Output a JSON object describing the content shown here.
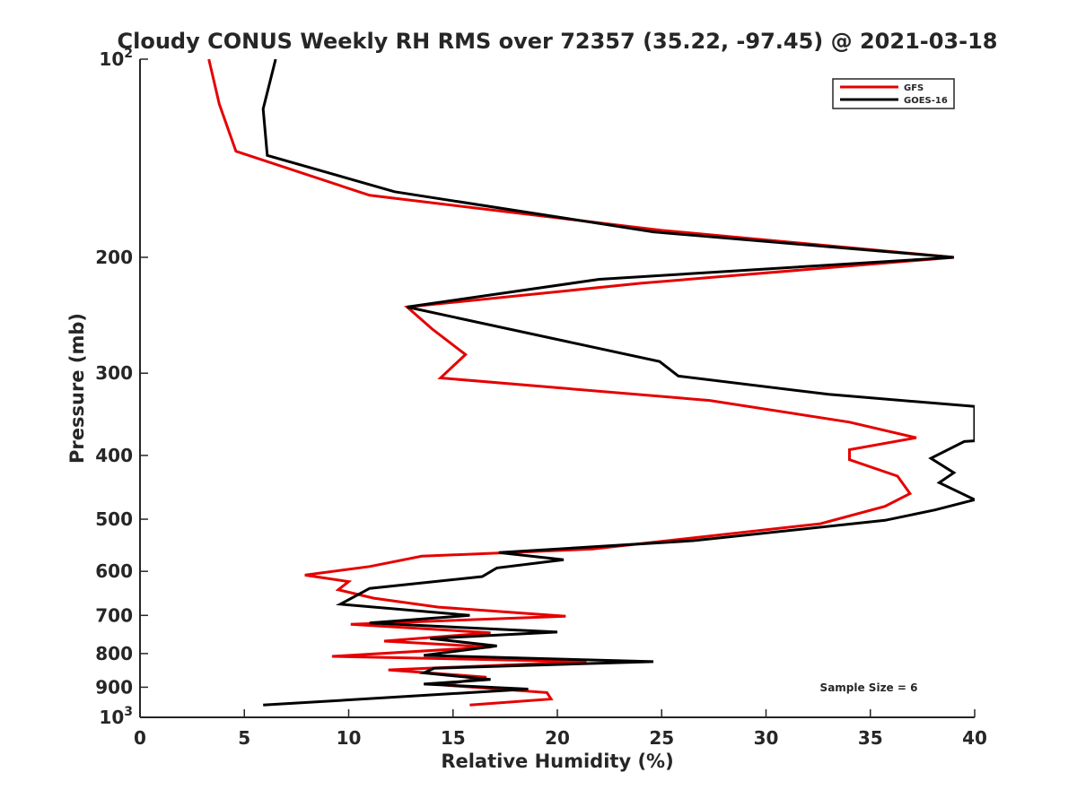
{
  "chart_data": {
    "type": "line",
    "title": "Cloudy CONUS Weekly RH RMS over 72357 (35.22, -97.45) @ 2021-03-18",
    "xlabel": "Relative Humidity (%)",
    "ylabel": "Pressure (mb)",
    "xlim": [
      0,
      40
    ],
    "ylim": [
      100,
      1000
    ],
    "y_scale": "log",
    "y_reversed": true,
    "x_ticks": [
      0,
      5,
      10,
      15,
      20,
      25,
      30,
      35,
      40
    ],
    "y_ticks": [
      {
        "value": 100,
        "base": "10",
        "exp": "2"
      },
      {
        "value": 200,
        "label": "200"
      },
      {
        "value": 300,
        "label": "300"
      },
      {
        "value": 400,
        "label": "400"
      },
      {
        "value": 500,
        "label": "500"
      },
      {
        "value": 600,
        "label": "600"
      },
      {
        "value": 700,
        "label": "700"
      },
      {
        "value": 800,
        "label": "800"
      },
      {
        "value": 900,
        "label": "900"
      },
      {
        "value": 1000,
        "base": "10",
        "exp": "3"
      }
    ],
    "grid": false,
    "legend_position": "top-right",
    "series": [
      {
        "name": "GFS",
        "color": "#e60000",
        "points": [
          [
            3.3,
            100
          ],
          [
            3.8,
            117
          ],
          [
            4.6,
            138
          ],
          [
            11.0,
            161
          ],
          [
            25.0,
            182
          ],
          [
            39.0,
            200
          ],
          [
            24.0,
            219
          ],
          [
            12.8,
            238
          ],
          [
            14.0,
            257
          ],
          [
            15.6,
            281
          ],
          [
            14.4,
            305
          ],
          [
            27.3,
            330
          ],
          [
            34.0,
            356
          ],
          [
            37.2,
            376
          ],
          [
            34.0,
            392
          ],
          [
            34.0,
            406
          ],
          [
            36.3,
            430
          ],
          [
            36.9,
            457
          ],
          [
            35.7,
            478
          ],
          [
            32.6,
            508
          ],
          [
            21.7,
            555
          ],
          [
            13.5,
            569
          ],
          [
            11.0,
            590
          ],
          [
            7.9,
            608
          ],
          [
            10.0,
            622
          ],
          [
            9.5,
            640
          ],
          [
            11.2,
            659
          ],
          [
            14.3,
            680
          ],
          [
            20.4,
            702
          ],
          [
            10.1,
            722
          ],
          [
            16.8,
            744
          ],
          [
            11.7,
            766
          ],
          [
            16.8,
            782
          ],
          [
            9.2,
            808
          ],
          [
            21.4,
            823
          ],
          [
            11.9,
            847
          ],
          [
            16.6,
            869
          ],
          [
            14.5,
            893
          ],
          [
            19.5,
            917
          ],
          [
            19.7,
            938
          ],
          [
            15.8,
            958
          ]
        ]
      },
      {
        "name": "GOES-16",
        "color": "#000000",
        "points": [
          [
            6.5,
            100
          ],
          [
            5.9,
            119
          ],
          [
            6.1,
            140
          ],
          [
            12.2,
            159
          ],
          [
            24.6,
            183
          ],
          [
            39.0,
            200
          ],
          [
            22.0,
            216
          ],
          [
            12.8,
            238
          ],
          [
            24.9,
            288
          ],
          [
            25.8,
            303
          ],
          [
            33.0,
            323
          ],
          [
            40.0,
            337
          ],
          [
            40.0,
            380
          ],
          [
            39.5,
            381
          ],
          [
            37.9,
            404
          ],
          [
            39.0,
            425
          ],
          [
            38.3,
            440
          ],
          [
            40.0,
            467
          ],
          [
            38.1,
            484
          ],
          [
            35.7,
            502
          ],
          [
            26.5,
            539
          ],
          [
            17.2,
            562
          ],
          [
            20.3,
            576
          ],
          [
            17.1,
            593
          ],
          [
            16.4,
            611
          ],
          [
            11.0,
            637
          ],
          [
            10.3,
            655
          ],
          [
            9.6,
            673
          ],
          [
            15.8,
            700
          ],
          [
            11.0,
            719
          ],
          [
            20.0,
            742
          ],
          [
            13.9,
            759
          ],
          [
            17.1,
            779
          ],
          [
            13.6,
            805
          ],
          [
            24.6,
            823
          ],
          [
            14.1,
            842
          ],
          [
            13.6,
            856
          ],
          [
            16.8,
            876
          ],
          [
            13.6,
            890
          ],
          [
            18.6,
            906
          ],
          [
            5.9,
            958
          ]
        ]
      }
    ],
    "annotation": "Sample Size = 6"
  }
}
